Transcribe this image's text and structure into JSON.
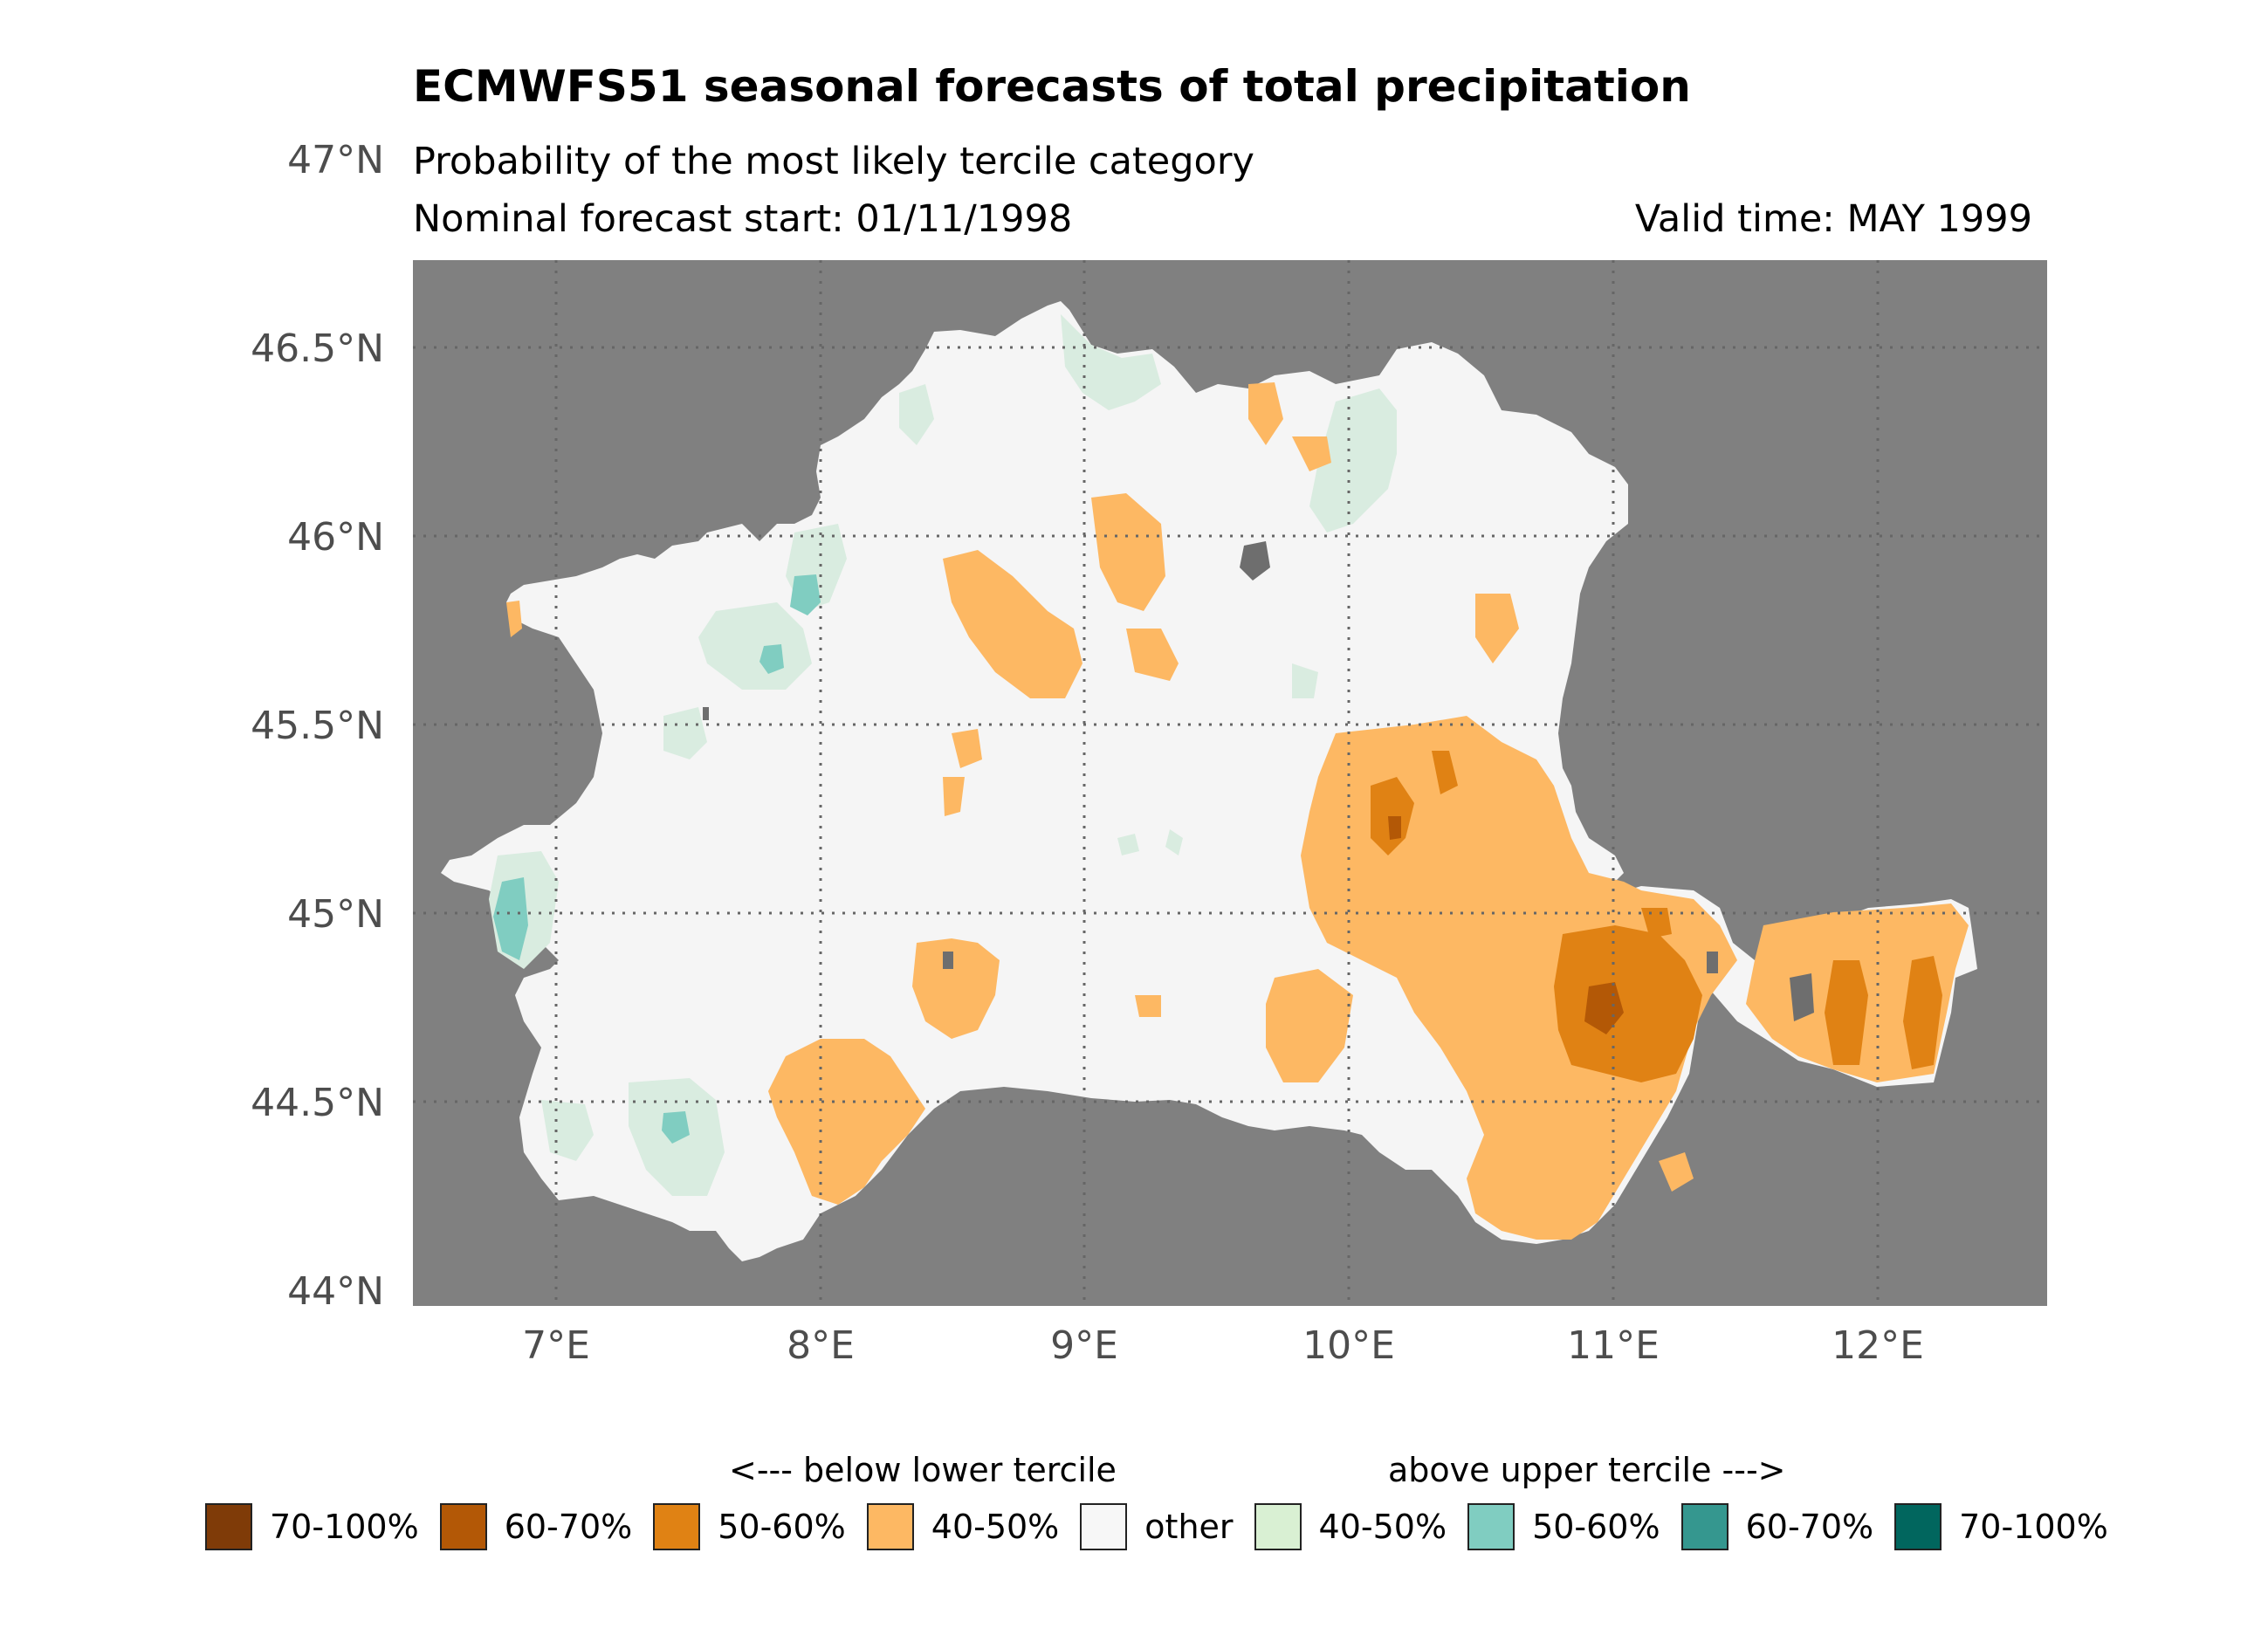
{
  "header": {
    "title": "ECMWFS51 seasonal forecasts of total precipitation",
    "subtitle": "Probability of the most likely tercile category",
    "forecast_start": "Nominal forecast start: 01/11/1998",
    "valid_time": "Valid time: MAY 1999"
  },
  "axes": {
    "y_ticks": [
      "47°N",
      "46.5°N",
      "46°N",
      "45.5°N",
      "45°N",
      "44.5°N",
      "44°N"
    ],
    "x_ticks": [
      "7°E",
      "8°E",
      "9°E",
      "10°E",
      "11°E",
      "12°E"
    ]
  },
  "colors": {
    "background_outside": "#808080",
    "region_other": "#f5f5f5",
    "below_40_50": "#fdb863",
    "below_50_60": "#e08214",
    "below_60_70": "#b35806",
    "above_40_50": "#d9ece0",
    "above_50_60": "#80cdc1",
    "masked": "#6e6e6e"
  },
  "legend": {
    "below_heading": "<--- below lower tercile",
    "above_heading": "above upper tercile --->",
    "items": [
      {
        "label": "70-100%",
        "color": "#7f3b08"
      },
      {
        "label": "60-70%",
        "color": "#b35806"
      },
      {
        "label": "50-60%",
        "color": "#e08214"
      },
      {
        "label": "40-50%",
        "color": "#fdb863"
      },
      {
        "label": "other",
        "color": "#f7f7f7"
      },
      {
        "label": "40-50%",
        "color": "#d9f0d3"
      },
      {
        "label": "50-60%",
        "color": "#80cdc1"
      },
      {
        "label": "60-70%",
        "color": "#35978f"
      },
      {
        "label": "70-100%",
        "color": "#01665e"
      }
    ]
  }
}
